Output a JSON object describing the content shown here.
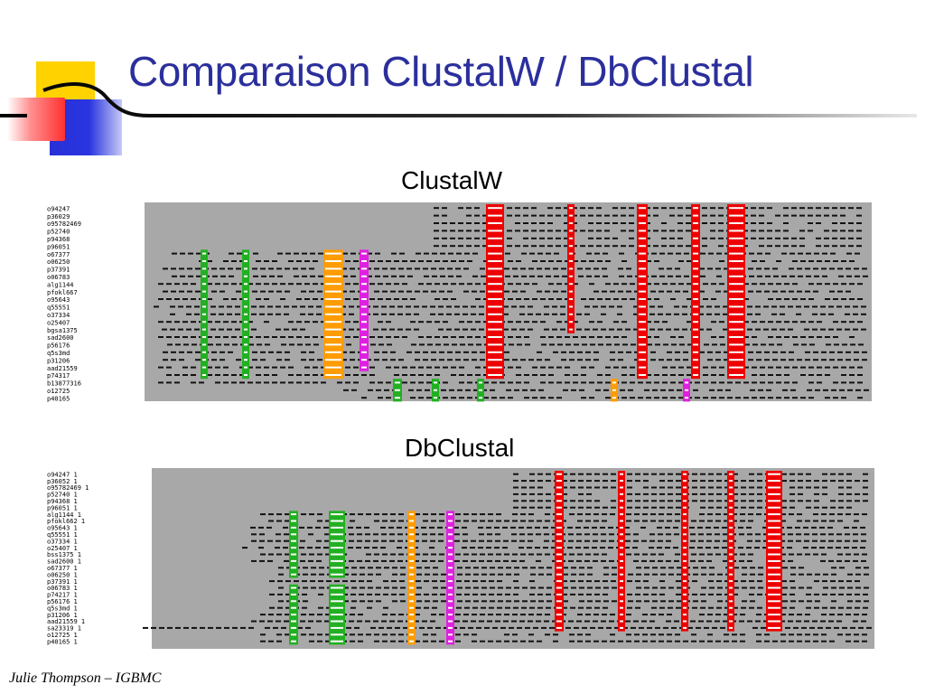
{
  "slide": {
    "title": "Comparaison ClustalW / DbClustal",
    "footer": "Julie Thompson – IGBMC"
  },
  "panels": {
    "clustalw": {
      "label": "ClustalW",
      "sequences": [
        "o94247",
        "p36029",
        "o95782469",
        "p52740",
        "p94368",
        "p96051",
        "o67377",
        "o06250",
        "p37391",
        "o06783",
        "alg1144",
        "pfokl667",
        "o95643",
        "q55551",
        "o37334",
        "o25407",
        "bgsa1375",
        "sad2600",
        "p56176",
        "q5s3md",
        "p31206",
        "aad21559",
        "p74317",
        "b13877316",
        "o12725",
        "p40165"
      ],
      "highlight_colors": [
        "#22b022",
        "#ff9c00",
        "#e020e0",
        "#ee0000"
      ]
    },
    "dbclustal": {
      "label": "DbClustal",
      "sequences": [
        "o94247 1",
        "p36052 1",
        "o95782469 1",
        "p52740 1",
        "p94368 1",
        "p96051 1",
        "alg1144 1",
        "pfokl662 1",
        "o95643 1",
        "q55551 1",
        "o37334 1",
        "o25407 1",
        "bss1375 1",
        "sad2600 1",
        "o67377 1",
        "o06250 1",
        "p37391 1",
        "o06783 1",
        "p74217 1",
        "p56176 1",
        "q5s3md 1",
        "p31206 1",
        "aad21559 1",
        "sa23319 1",
        "o12725 1",
        "p40165 1"
      ],
      "highlight_colors": [
        "#22b022",
        "#ff9c00",
        "#e020e0",
        "#ee0000"
      ]
    }
  }
}
